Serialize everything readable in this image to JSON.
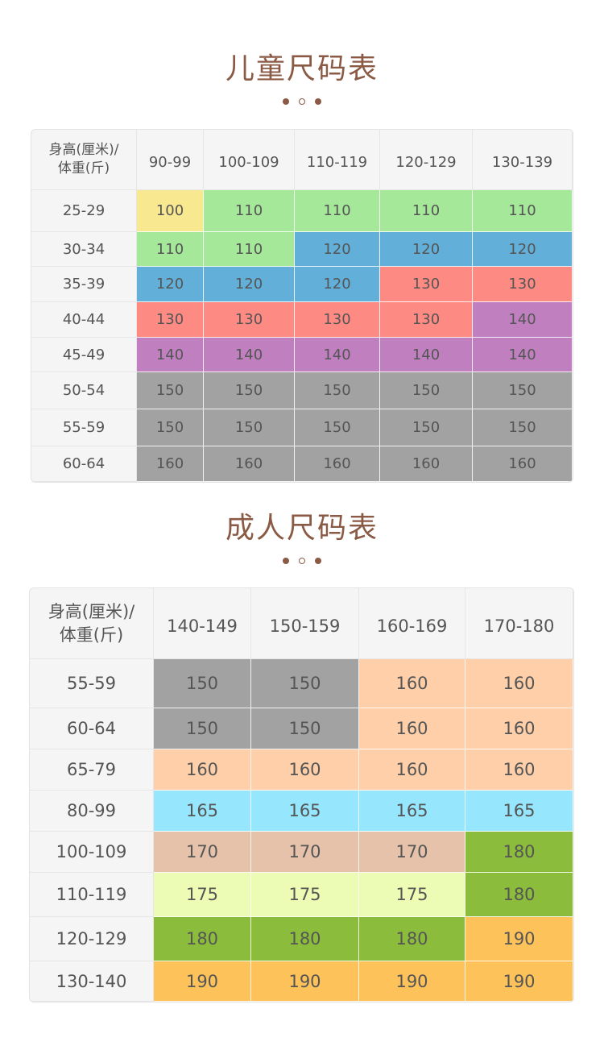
{
  "colors": {
    "yellow": "#f8e890",
    "green": "#a6e89a",
    "blue": "#62b0da",
    "red": "#fe8a84",
    "purple": "#c080c0",
    "gray": "#a2a2a2",
    "peach": "#fecfa8",
    "cyan": "#96e6fe",
    "tan": "#e6c2aa",
    "lightyellow": "#ecfcb4",
    "olive": "#8cbc3c",
    "orange": "#fec25a"
  },
  "kids": {
    "title": "儿童尺码表",
    "corner_line1": "身高(厘米)/",
    "corner_line2": "体重(斤)",
    "columns": [
      "90-99",
      "100-109",
      "110-119",
      "120-129",
      "130-139"
    ],
    "rows": [
      {
        "label": "25-29",
        "cells": [
          {
            "v": "100",
            "c": "yellow"
          },
          {
            "v": "110",
            "c": "green"
          },
          {
            "v": "110",
            "c": "green"
          },
          {
            "v": "110",
            "c": "green"
          },
          {
            "v": "110",
            "c": "green"
          }
        ]
      },
      {
        "label": "30-34",
        "cells": [
          {
            "v": "110",
            "c": "green"
          },
          {
            "v": "110",
            "c": "green"
          },
          {
            "v": "120",
            "c": "blue"
          },
          {
            "v": "120",
            "c": "blue"
          },
          {
            "v": "120",
            "c": "blue"
          }
        ]
      },
      {
        "label": "35-39",
        "cells": [
          {
            "v": "120",
            "c": "blue"
          },
          {
            "v": "120",
            "c": "blue"
          },
          {
            "v": "120",
            "c": "blue"
          },
          {
            "v": "130",
            "c": "red"
          },
          {
            "v": "130",
            "c": "red"
          }
        ]
      },
      {
        "label": "40-44",
        "cells": [
          {
            "v": "130",
            "c": "red"
          },
          {
            "v": "130",
            "c": "red"
          },
          {
            "v": "130",
            "c": "red"
          },
          {
            "v": "130",
            "c": "red"
          },
          {
            "v": "140",
            "c": "purple"
          }
        ]
      },
      {
        "label": "45-49",
        "cells": [
          {
            "v": "140",
            "c": "purple"
          },
          {
            "v": "140",
            "c": "purple"
          },
          {
            "v": "140",
            "c": "purple"
          },
          {
            "v": "140",
            "c": "purple"
          },
          {
            "v": "140",
            "c": "purple"
          }
        ]
      },
      {
        "label": "50-54",
        "cells": [
          {
            "v": "150",
            "c": "gray"
          },
          {
            "v": "150",
            "c": "gray"
          },
          {
            "v": "150",
            "c": "gray"
          },
          {
            "v": "150",
            "c": "gray"
          },
          {
            "v": "150",
            "c": "gray"
          }
        ]
      },
      {
        "label": "55-59",
        "cells": [
          {
            "v": "150",
            "c": "gray"
          },
          {
            "v": "150",
            "c": "gray"
          },
          {
            "v": "150",
            "c": "gray"
          },
          {
            "v": "150",
            "c": "gray"
          },
          {
            "v": "150",
            "c": "gray"
          }
        ]
      },
      {
        "label": "60-64",
        "cells": [
          {
            "v": "160",
            "c": "gray"
          },
          {
            "v": "160",
            "c": "gray"
          },
          {
            "v": "160",
            "c": "gray"
          },
          {
            "v": "160",
            "c": "gray"
          },
          {
            "v": "160",
            "c": "gray"
          }
        ]
      }
    ]
  },
  "adults": {
    "title": "成人尺码表",
    "corner_line1": "身高(厘米)/",
    "corner_line2": "体重(斤)",
    "columns": [
      "140-149",
      "150-159",
      "160-169",
      "170-180"
    ],
    "rows": [
      {
        "label": "55-59",
        "cells": [
          {
            "v": "150",
            "c": "gray"
          },
          {
            "v": "150",
            "c": "gray"
          },
          {
            "v": "160",
            "c": "peach"
          },
          {
            "v": "160",
            "c": "peach"
          }
        ]
      },
      {
        "label": "60-64",
        "cells": [
          {
            "v": "150",
            "c": "gray"
          },
          {
            "v": "150",
            "c": "gray"
          },
          {
            "v": "160",
            "c": "peach"
          },
          {
            "v": "160",
            "c": "peach"
          }
        ]
      },
      {
        "label": "65-79",
        "cells": [
          {
            "v": "160",
            "c": "peach"
          },
          {
            "v": "160",
            "c": "peach"
          },
          {
            "v": "160",
            "c": "peach"
          },
          {
            "v": "160",
            "c": "peach"
          }
        ]
      },
      {
        "label": "80-99",
        "cells": [
          {
            "v": "165",
            "c": "cyan"
          },
          {
            "v": "165",
            "c": "cyan"
          },
          {
            "v": "165",
            "c": "cyan"
          },
          {
            "v": "165",
            "c": "cyan"
          }
        ]
      },
      {
        "label": "100-109",
        "cells": [
          {
            "v": "170",
            "c": "tan"
          },
          {
            "v": "170",
            "c": "tan"
          },
          {
            "v": "170",
            "c": "tan"
          },
          {
            "v": "180",
            "c": "olive"
          }
        ]
      },
      {
        "label": "110-119",
        "cells": [
          {
            "v": "175",
            "c": "lightyellow"
          },
          {
            "v": "175",
            "c": "lightyellow"
          },
          {
            "v": "175",
            "c": "lightyellow"
          },
          {
            "v": "180",
            "c": "olive"
          }
        ]
      },
      {
        "label": "120-129",
        "cells": [
          {
            "v": "180",
            "c": "olive"
          },
          {
            "v": "180",
            "c": "olive"
          },
          {
            "v": "180",
            "c": "olive"
          },
          {
            "v": "190",
            "c": "orange"
          }
        ]
      },
      {
        "label": "130-140",
        "cells": [
          {
            "v": "190",
            "c": "orange"
          },
          {
            "v": "190",
            "c": "orange"
          },
          {
            "v": "190",
            "c": "orange"
          },
          {
            "v": "190",
            "c": "orange"
          }
        ]
      }
    ]
  }
}
